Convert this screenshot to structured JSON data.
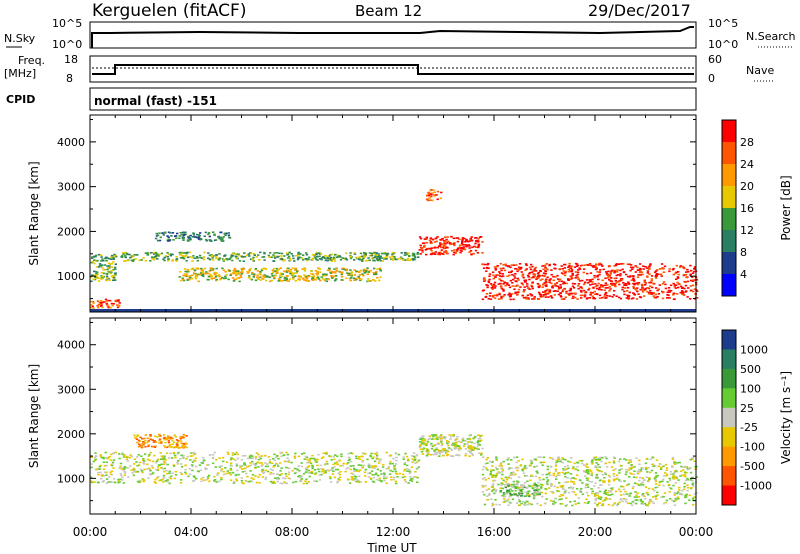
{
  "header": {
    "station": "Kerguelen (fitACF)",
    "beam": "Beam 12",
    "date": "29/Dec/2017"
  },
  "strip_nsky": {
    "left_label": "N.Sky",
    "right_label": "N.Search",
    "left_ticks": [
      "10^5",
      "10^0"
    ],
    "right_ticks": [
      "10^5",
      "10^0"
    ]
  },
  "strip_freq": {
    "left_label_1": "Freq.",
    "left_label_2": "[MHz]",
    "right_label": "Nave",
    "left_ticks": [
      "18",
      "8"
    ],
    "right_ticks": [
      "60",
      "0"
    ]
  },
  "strip_cpid": {
    "label": "CPID",
    "mode": "normal (fast) -151"
  },
  "x_axis": {
    "title": "Time UT",
    "ticks": [
      "00:00",
      "04:00",
      "08:00",
      "12:00",
      "16:00",
      "20:00",
      "00:00"
    ]
  },
  "chart_data": [
    {
      "type": "heatmap",
      "name": "power-panel",
      "ylabel": "Slant Range [km]",
      "ylim": [
        200,
        4600
      ],
      "yticks": [
        "4000",
        "3000",
        "2000",
        "1000"
      ],
      "xlim": [
        0,
        24
      ],
      "colorbar": {
        "label": "Power [dB]",
        "ticks": [
          "28",
          "24",
          "20",
          "16",
          "12",
          "8",
          "4"
        ],
        "colors": [
          "#ff0000",
          "#ff5500",
          "#ff9900",
          "#e8c800",
          "#3a9a3a",
          "#2a7f62",
          "#1e3c8c",
          "#0000ff"
        ]
      },
      "features": [
        {
          "t0": 0,
          "t1": 1.2,
          "r0": 300,
          "r1": 500,
          "level": 6
        },
        {
          "t0": 0,
          "t1": 1.0,
          "r0": 900,
          "r1": 1500,
          "level": 3
        },
        {
          "t0": 1.2,
          "t1": 13,
          "r0": 1350,
          "r1": 1550,
          "level": 3
        },
        {
          "t0": 3.5,
          "t1": 11.5,
          "r0": 900,
          "r1": 1200,
          "level": 4
        },
        {
          "t0": 2.5,
          "t1": 5.5,
          "r0": 1800,
          "r1": 2000,
          "level": 2
        },
        {
          "t0": 13,
          "t1": 15.5,
          "r0": 1500,
          "r1": 1900,
          "level": 7
        },
        {
          "t0": 13.3,
          "t1": 13.9,
          "r0": 2700,
          "r1": 2950,
          "level": 6
        },
        {
          "t0": 15.5,
          "t1": 24,
          "r0": 500,
          "r1": 1300,
          "level": 7
        }
      ]
    },
    {
      "type": "heatmap",
      "name": "velocity-panel",
      "ylabel": "Slant Range [km]",
      "ylim": [
        200,
        4600
      ],
      "yticks": [
        "4000",
        "3000",
        "2000",
        "1000"
      ],
      "xlim": [
        0,
        24
      ],
      "colorbar": {
        "label": "Velocity [m s⁻¹]",
        "ticks": [
          "1000",
          "500",
          "100",
          "25",
          "-25",
          "-100",
          "-500",
          "-1000"
        ],
        "colors": [
          "#1e3c8c",
          "#2a7f62",
          "#3a9a3a",
          "#66cc33",
          "#c8c8c0",
          "#e8c800",
          "#ff9900",
          "#ff5500",
          "#ff0000"
        ]
      },
      "features": [
        {
          "t0": 0,
          "t1": 13,
          "r0": 900,
          "r1": 1600,
          "level": 4
        },
        {
          "t0": 1.7,
          "t1": 3.8,
          "r0": 1700,
          "r1": 2000,
          "level": 6
        },
        {
          "t0": 13,
          "t1": 15.5,
          "r0": 1500,
          "r1": 2000,
          "level": 4
        },
        {
          "t0": 15.5,
          "t1": 24,
          "r0": 400,
          "r1": 1500,
          "level": 4
        },
        {
          "t0": 16.2,
          "t1": 17.8,
          "r0": 600,
          "r1": 900,
          "level": 3
        }
      ]
    }
  ]
}
